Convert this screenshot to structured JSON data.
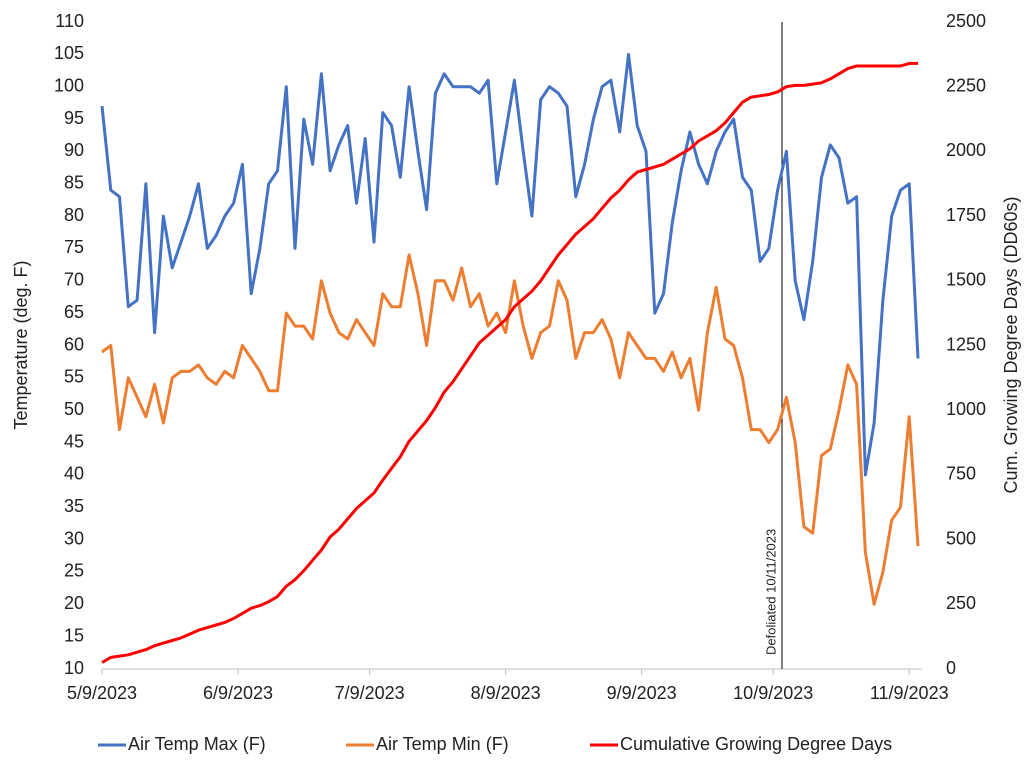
{
  "chart_data": {
    "type": "line",
    "x": [
      "5/9/2023",
      "5/11/2023",
      "5/13/2023",
      "5/15/2023",
      "5/17/2023",
      "5/19/2023",
      "5/21/2023",
      "5/23/2023",
      "5/25/2023",
      "5/27/2023",
      "5/29/2023",
      "5/31/2023",
      "6/2/2023",
      "6/4/2023",
      "6/6/2023",
      "6/8/2023",
      "6/10/2023",
      "6/12/2023",
      "6/14/2023",
      "6/16/2023",
      "6/18/2023",
      "6/20/2023",
      "6/22/2023",
      "6/24/2023",
      "6/26/2023",
      "6/28/2023",
      "6/30/2023",
      "7/2/2023",
      "7/4/2023",
      "7/6/2023",
      "7/8/2023",
      "7/10/2023",
      "7/12/2023",
      "7/14/2023",
      "7/16/2023",
      "7/18/2023",
      "7/20/2023",
      "7/22/2023",
      "7/24/2023",
      "7/26/2023",
      "7/28/2023",
      "7/30/2023",
      "8/1/2023",
      "8/3/2023",
      "8/5/2023",
      "8/7/2023",
      "8/9/2023",
      "8/11/2023",
      "8/13/2023",
      "8/15/2023",
      "8/17/2023",
      "8/19/2023",
      "8/21/2023",
      "8/23/2023",
      "8/25/2023",
      "8/27/2023",
      "8/29/2023",
      "8/31/2023",
      "9/2/2023",
      "9/4/2023",
      "9/6/2023",
      "9/8/2023",
      "9/10/2023",
      "9/12/2023",
      "9/14/2023",
      "9/16/2023",
      "9/18/2023",
      "9/20/2023",
      "9/22/2023",
      "9/24/2023",
      "9/26/2023",
      "9/28/2023",
      "9/30/2023",
      "10/2/2023",
      "10/4/2023",
      "10/6/2023",
      "10/8/2023",
      "10/10/2023",
      "10/12/2023",
      "10/14/2023",
      "10/16/2023",
      "10/18/2023",
      "10/20/2023",
      "10/22/2023",
      "10/24/2023",
      "10/26/2023",
      "10/28/2023",
      "10/30/2023",
      "11/1/2023",
      "11/3/2023",
      "11/5/2023",
      "11/7/2023",
      "11/9/2023",
      "11/11/2023"
    ],
    "series": [
      {
        "name": "Air Temp Max (F)",
        "color": "#4472c4",
        "axis": "y",
        "values": [
          97,
          84,
          83,
          66,
          67,
          85,
          62,
          80,
          72,
          76,
          80,
          85,
          75,
          77,
          80,
          82,
          88,
          68,
          75,
          85,
          87,
          100,
          75,
          95,
          88,
          102,
          87,
          91,
          94,
          82,
          92,
          76,
          96,
          94,
          86,
          100,
          90,
          81,
          99,
          102,
          100,
          100,
          100,
          99,
          101,
          85,
          93,
          101,
          90,
          80,
          98,
          100,
          99,
          97,
          83,
          88,
          95,
          100,
          101,
          93,
          105,
          94,
          90,
          65,
          68,
          79,
          87,
          93,
          88,
          85,
          90,
          93,
          95,
          86,
          84,
          73,
          75,
          84,
          90,
          70,
          64,
          73,
          86,
          91,
          89,
          82,
          83,
          40,
          48,
          67,
          80,
          84,
          85,
          58
        ]
      },
      {
        "name": "Air Temp Min (F)",
        "color": "#ed7d31",
        "axis": "y",
        "values": [
          59,
          60,
          47,
          55,
          52,
          49,
          54,
          48,
          55,
          56,
          56,
          57,
          55,
          54,
          56,
          55,
          60,
          58,
          56,
          53,
          53,
          65,
          63,
          63,
          61,
          70,
          65,
          62,
          61,
          64,
          62,
          60,
          68,
          66,
          66,
          74,
          68,
          60,
          70,
          70,
          67,
          72,
          66,
          68,
          63,
          65,
          62,
          70,
          63,
          58,
          62,
          63,
          70,
          67,
          58,
          62,
          62,
          64,
          61,
          55,
          62,
          60,
          58,
          58,
          56,
          59,
          55,
          58,
          50,
          62,
          69,
          61,
          60,
          55,
          47,
          47,
          45,
          47,
          52,
          45,
          32,
          31,
          43,
          44,
          50,
          57,
          54,
          28,
          20,
          25,
          33,
          35,
          49,
          29
        ]
      },
      {
        "name": "Cumulative Growing Degree Days",
        "color": "#ff0000",
        "axis": "y2",
        "values": [
          25,
          45,
          50,
          55,
          65,
          75,
          90,
          100,
          110,
          120,
          135,
          150,
          160,
          170,
          180,
          195,
          215,
          235,
          245,
          260,
          280,
          320,
          345,
          380,
          420,
          460,
          510,
          540,
          580,
          620,
          650,
          680,
          730,
          775,
          820,
          880,
          920,
          960,
          1010,
          1070,
          1110,
          1160,
          1210,
          1260,
          1290,
          1320,
          1350,
          1400,
          1430,
          1460,
          1500,
          1550,
          1600,
          1640,
          1680,
          1710,
          1740,
          1780,
          1820,
          1850,
          1890,
          1920,
          1930,
          1940,
          1950,
          1970,
          1990,
          2010,
          2040,
          2060,
          2080,
          2110,
          2150,
          2190,
          2210,
          2215,
          2220,
          2230,
          2250,
          2255,
          2255,
          2260,
          2265,
          2280,
          2300,
          2320,
          2330,
          2330,
          2330,
          2330,
          2330,
          2330,
          2340,
          2340
        ]
      }
    ],
    "xlim": [
      "5/9/2023",
      "11/11/2023"
    ],
    "xticks": [
      "5/9/2023",
      "6/9/2023",
      "7/9/2023",
      "8/9/2023",
      "9/9/2023",
      "10/9/2023",
      "11/9/2023"
    ],
    "ylabel": "Temperature (deg. F)",
    "ylim": [
      10,
      110
    ],
    "yticks": [
      10,
      15,
      20,
      25,
      30,
      35,
      40,
      45,
      50,
      55,
      60,
      65,
      70,
      75,
      80,
      85,
      90,
      95,
      100,
      105,
      110
    ],
    "y2label": "Cum. Growing Degree Days (DD60s)",
    "y2lim": [
      0,
      2500
    ],
    "y2ticks": [
      0,
      250,
      500,
      750,
      1000,
      1250,
      1500,
      1750,
      2000,
      2250,
      2500
    ],
    "annotation": {
      "label": "Defoliated 10/11/2023",
      "x": "10/11/2023"
    },
    "grid": false,
    "legend": "bottom"
  }
}
